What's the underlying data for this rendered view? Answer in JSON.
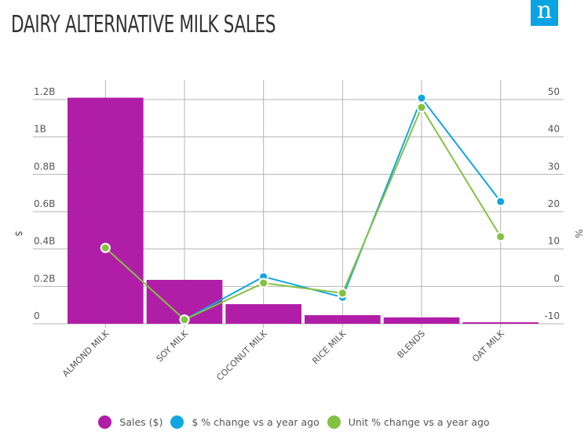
{
  "header": {
    "title": "DAIRY ALTERNATIVE MILK SALES",
    "logo_text": "n",
    "logo_color": "#0aa4e4"
  },
  "chart_data": {
    "type": "bar",
    "title": "DAIRY ALTERNATIVE MILK SALES",
    "categories": [
      "ALMOND MILK",
      "SOY MILK",
      "COCONUT MILK",
      "RICE MILK",
      "BLENDS",
      "OAT MILK"
    ],
    "xlabel": "",
    "ylabel": "$",
    "y2label": "%",
    "ylim": [
      0,
      1.2
    ],
    "y2lim": [
      -10,
      50
    ],
    "yticks": [
      "0",
      "0.2B",
      "0.4B",
      "0.6B",
      "0.8B",
      "1B",
      "1.2B"
    ],
    "y2ticks": [
      "-10",
      "0",
      "10",
      "20",
      "30",
      "40",
      "50"
    ],
    "grid": true,
    "legend_position": "bottom",
    "series": [
      {
        "name": "Sales ($)",
        "type": "bar",
        "axis": "left",
        "unit": "B",
        "color": "#b01ea8",
        "values": [
          1.21,
          0.235,
          0.105,
          0.046,
          0.034,
          0.008
        ]
      },
      {
        "name": "$ % change vs a year ago",
        "type": "line",
        "axis": "right",
        "color": "#12a6e0",
        "values": [
          null,
          -8.9,
          2.6,
          -2.9,
          50.4,
          22.7
        ]
      },
      {
        "name": "Unit % change vs a year ago",
        "type": "line",
        "axis": "right",
        "color": "#84c142",
        "values": [
          10.3,
          -8.9,
          0.9,
          -1.8,
          47.9,
          13.3
        ]
      }
    ]
  }
}
